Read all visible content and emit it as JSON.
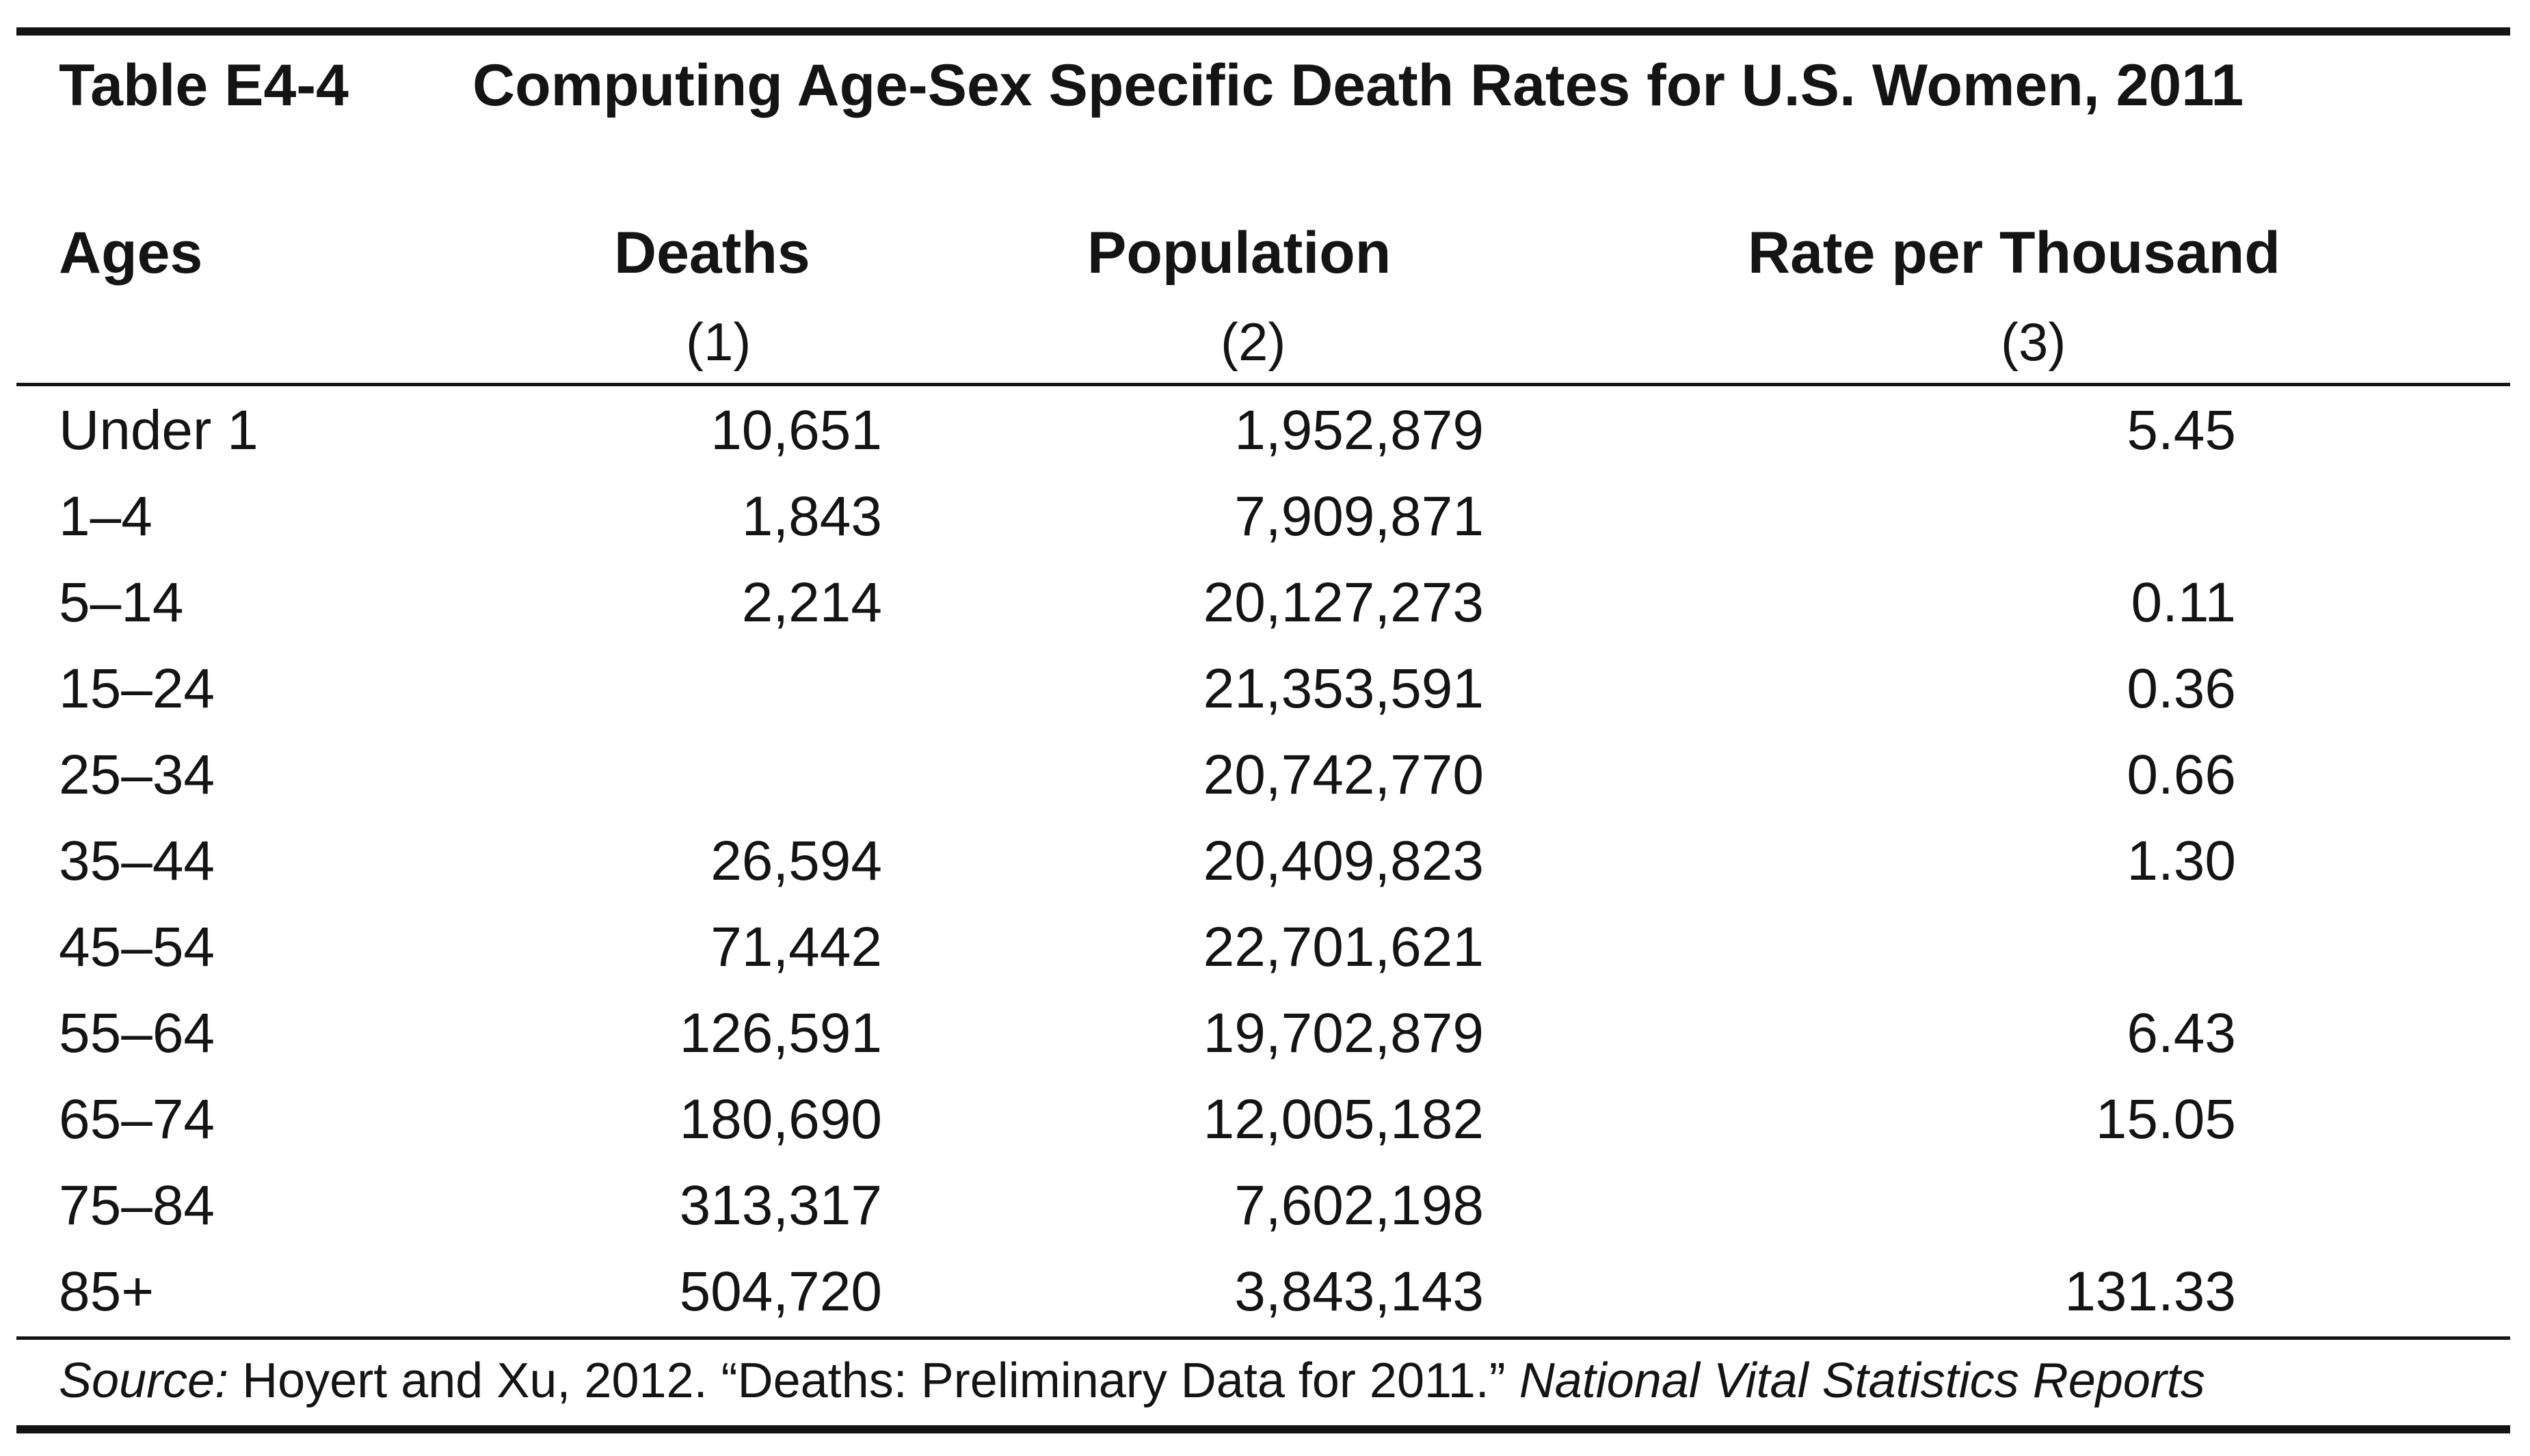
{
  "table": {
    "number": "Table E4-4",
    "title": "Computing Age-Sex Specific Death Rates for U.S. Women, 2011",
    "columns": [
      {
        "label": "Ages",
        "sub": ""
      },
      {
        "label": "Deaths",
        "sub": "(1)"
      },
      {
        "label": "Population",
        "sub": "(2)"
      },
      {
        "label": "Rate per Thousand",
        "sub": "(3)"
      }
    ],
    "rows": [
      {
        "age": "Under 1",
        "deaths": "10,651",
        "population": "1,952,879",
        "rate": "5.45"
      },
      {
        "age": "1–4",
        "deaths": "1,843",
        "population": "7,909,871",
        "rate": ""
      },
      {
        "age": "5–14",
        "deaths": "2,214",
        "population": "20,127,273",
        "rate": "0.11"
      },
      {
        "age": "15–24",
        "deaths": "",
        "population": "21,353,591",
        "rate": "0.36"
      },
      {
        "age": "25–34",
        "deaths": "",
        "population": "20,742,770",
        "rate": "0.66"
      },
      {
        "age": "35–44",
        "deaths": "26,594",
        "population": "20,409,823",
        "rate": "1.30"
      },
      {
        "age": "45–54",
        "deaths": "71,442",
        "population": "22,701,621",
        "rate": ""
      },
      {
        "age": "55–64",
        "deaths": "126,591",
        "population": "19,702,879",
        "rate": "6.43"
      },
      {
        "age": "65–74",
        "deaths": "180,690",
        "population": "12,005,182",
        "rate": "15.05"
      },
      {
        "age": "75–84",
        "deaths": "313,317",
        "population": "7,602,198",
        "rate": ""
      },
      {
        "age": "85+",
        "deaths": "504,720",
        "population": "3,843,143",
        "rate": "131.33"
      }
    ]
  },
  "source": {
    "label": "Source:",
    "text": " Hoyert and Xu, 2012. “Deaths: Preliminary Data for 2011.” ",
    "publication": "National Vital Statistics Reports"
  }
}
